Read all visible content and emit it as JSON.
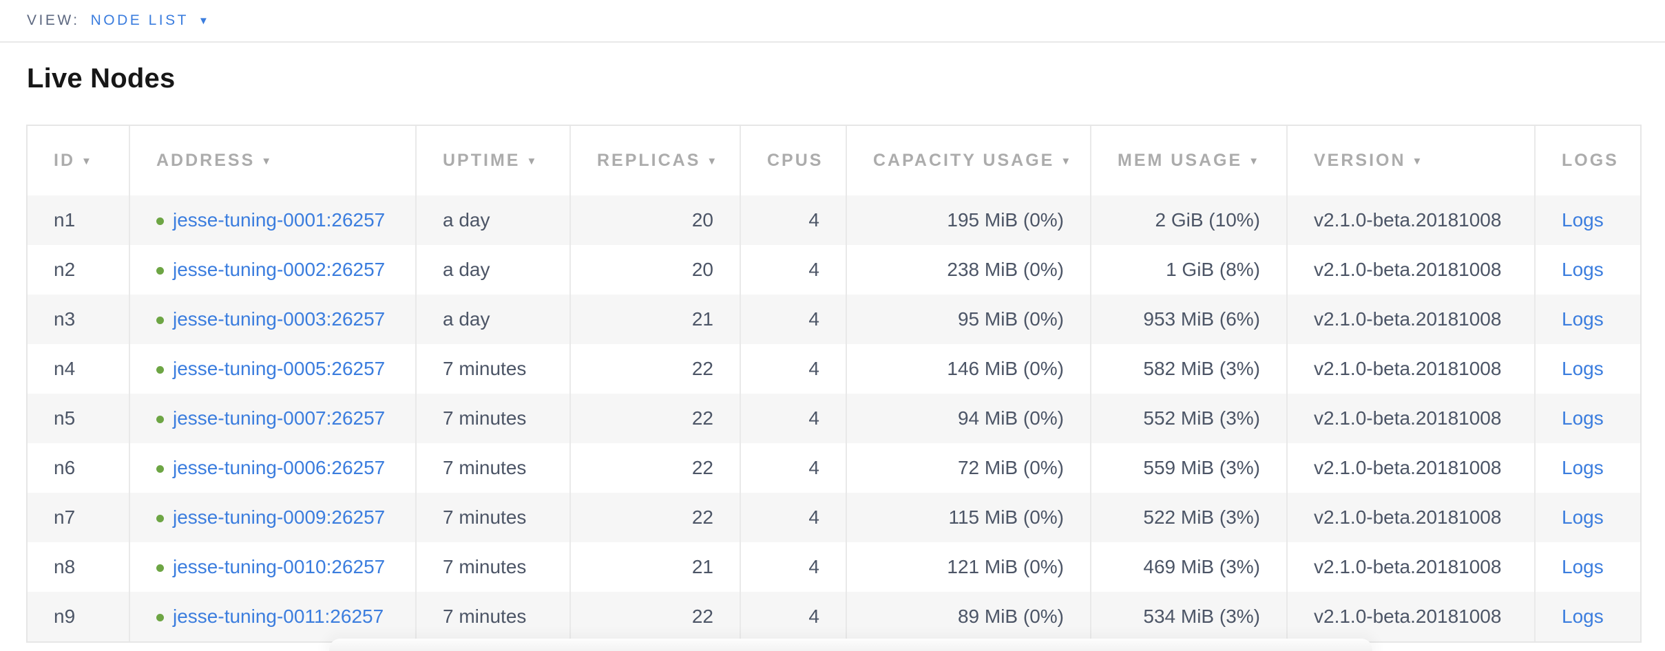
{
  "view_bar": {
    "label": "VIEW:",
    "selected": "NODE LIST"
  },
  "page": {
    "title": "Live Nodes"
  },
  "icons": {
    "sort_caret": "▼",
    "dropdown_caret": "▼"
  },
  "colors": {
    "link_blue": "#3b7dde",
    "live_dot_green": "#6da544",
    "row_stripe": "#f6f6f6",
    "header_gray": "#acacac",
    "cell_text": "#4c5566",
    "table_border": "#e9e9e9"
  },
  "table": {
    "columns": [
      {
        "label": "ID",
        "sortable": true,
        "align": "left"
      },
      {
        "label": "ADDRESS",
        "sortable": true,
        "align": "left"
      },
      {
        "label": "UPTIME",
        "sortable": true,
        "align": "left"
      },
      {
        "label": "REPLICAS",
        "sortable": true,
        "align": "right"
      },
      {
        "label": "CPUS",
        "sortable": false,
        "align": "right"
      },
      {
        "label": "CAPACITY USAGE",
        "sortable": true,
        "align": "right"
      },
      {
        "label": "MEM USAGE",
        "sortable": true,
        "align": "right"
      },
      {
        "label": "VERSION",
        "sortable": true,
        "align": "left"
      },
      {
        "label": "LOGS",
        "sortable": false,
        "align": "left"
      }
    ],
    "rows": [
      {
        "id": "n1",
        "address": "jesse-tuning-0001:26257",
        "uptime": "a day",
        "replicas": "20",
        "cpus": "4",
        "capacity_usage": "195 MiB (0%)",
        "mem_usage": "2 GiB (10%)",
        "version": "v2.1.0-beta.20181008",
        "logs_label": "Logs"
      },
      {
        "id": "n2",
        "address": "jesse-tuning-0002:26257",
        "uptime": "a day",
        "replicas": "20",
        "cpus": "4",
        "capacity_usage": "238 MiB (0%)",
        "mem_usage": "1 GiB (8%)",
        "version": "v2.1.0-beta.20181008",
        "logs_label": "Logs"
      },
      {
        "id": "n3",
        "address": "jesse-tuning-0003:26257",
        "uptime": "a day",
        "replicas": "21",
        "cpus": "4",
        "capacity_usage": "95 MiB (0%)",
        "mem_usage": "953 MiB (6%)",
        "version": "v2.1.0-beta.20181008",
        "logs_label": "Logs"
      },
      {
        "id": "n4",
        "address": "jesse-tuning-0005:26257",
        "uptime": "7 minutes",
        "replicas": "22",
        "cpus": "4",
        "capacity_usage": "146 MiB (0%)",
        "mem_usage": "582 MiB (3%)",
        "version": "v2.1.0-beta.20181008",
        "logs_label": "Logs"
      },
      {
        "id": "n5",
        "address": "jesse-tuning-0007:26257",
        "uptime": "7 minutes",
        "replicas": "22",
        "cpus": "4",
        "capacity_usage": "94 MiB (0%)",
        "mem_usage": "552 MiB (3%)",
        "version": "v2.1.0-beta.20181008",
        "logs_label": "Logs"
      },
      {
        "id": "n6",
        "address": "jesse-tuning-0006:26257",
        "uptime": "7 minutes",
        "replicas": "22",
        "cpus": "4",
        "capacity_usage": "72 MiB (0%)",
        "mem_usage": "559 MiB (3%)",
        "version": "v2.1.0-beta.20181008",
        "logs_label": "Logs"
      },
      {
        "id": "n7",
        "address": "jesse-tuning-0009:26257",
        "uptime": "7 minutes",
        "replicas": "22",
        "cpus": "4",
        "capacity_usage": "115 MiB (0%)",
        "mem_usage": "522 MiB (3%)",
        "version": "v2.1.0-beta.20181008",
        "logs_label": "Logs"
      },
      {
        "id": "n8",
        "address": "jesse-tuning-0010:26257",
        "uptime": "7 minutes",
        "replicas": "21",
        "cpus": "4",
        "capacity_usage": "121 MiB (0%)",
        "mem_usage": "469 MiB (3%)",
        "version": "v2.1.0-beta.20181008",
        "logs_label": "Logs"
      },
      {
        "id": "n9",
        "address": "jesse-tuning-0011:26257",
        "uptime": "7 minutes",
        "replicas": "22",
        "cpus": "4",
        "capacity_usage": "89 MiB (0%)",
        "mem_usage": "534 MiB (3%)",
        "version": "v2.1.0-beta.20181008",
        "logs_label": "Logs"
      }
    ]
  }
}
